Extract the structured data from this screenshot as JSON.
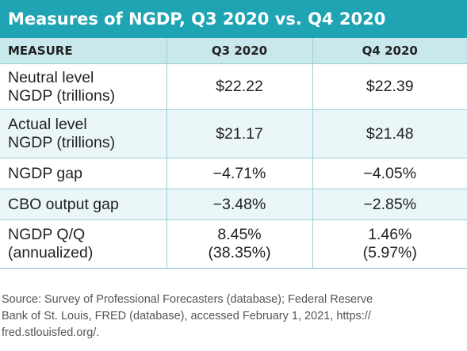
{
  "title": "Measures of NGDP, Q3 2020 vs. Q4 2020",
  "table": {
    "headers": [
      "MEASURE",
      "Q3 2020",
      "Q4 2020"
    ],
    "rows": [
      {
        "measure": [
          "Neutral level",
          "NGDP (trillions)"
        ],
        "q3": [
          "$22.22"
        ],
        "q4": [
          "$22.39"
        ]
      },
      {
        "measure": [
          "Actual level",
          "NGDP (trillions)"
        ],
        "q3": [
          "$21.17"
        ],
        "q4": [
          "$21.48"
        ]
      },
      {
        "measure": [
          "NGDP gap"
        ],
        "q3": [
          "−4.71%"
        ],
        "q4": [
          "−4.05%"
        ]
      },
      {
        "measure": [
          "CBO output gap"
        ],
        "q3": [
          "−3.48%"
        ],
        "q4": [
          "−2.85%"
        ]
      },
      {
        "measure": [
          "NGDP Q/Q",
          "(annualized)"
        ],
        "q3": [
          "8.45%",
          "(38.35%)"
        ],
        "q4": [
          "1.46%",
          "(5.97%)"
        ]
      }
    ]
  },
  "source": [
    "Source: Survey of Professional Forecasters (database); Federal Reserve",
    "Bank of St. Louis, FRED (database), accessed February 1, 2021, https://",
    "fred.stlouisfed.org/."
  ],
  "colors": {
    "title_bar": "#1fa4b3",
    "header_row": "#c9e8ec",
    "alt_row": "#eaf6f8",
    "rule": "#9bcfd6"
  }
}
